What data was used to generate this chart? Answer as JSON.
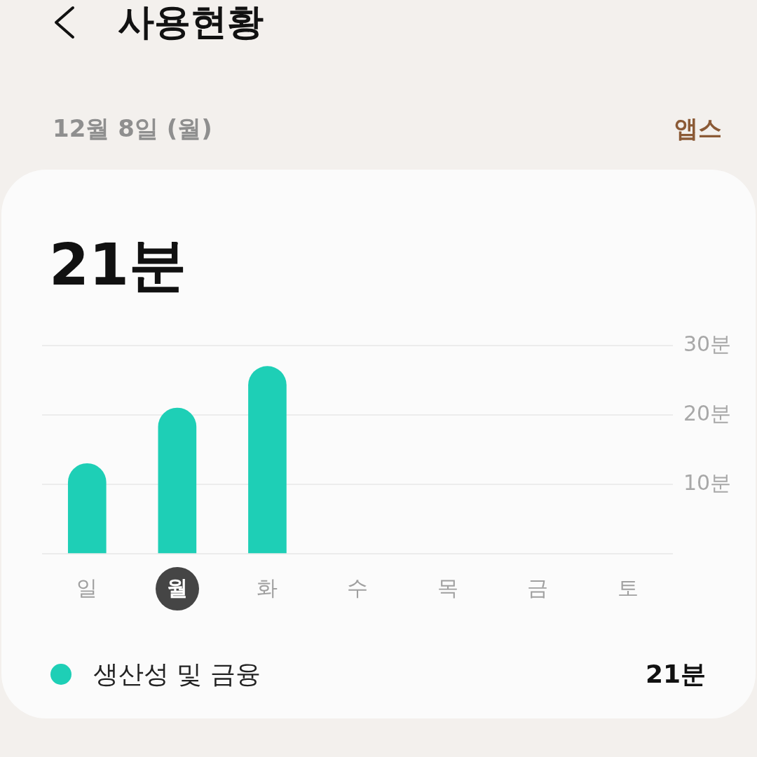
{
  "chart_data": {
    "type": "bar",
    "title": "사용현황",
    "subtitle": "12월 8일 (월)",
    "categories": [
      "일",
      "월",
      "화",
      "수",
      "목",
      "금",
      "토"
    ],
    "series": [
      {
        "name": "생산성 및 금융",
        "color": "#1ecfb6",
        "values": [
          13,
          21,
          27,
          null,
          null,
          null,
          null
        ]
      }
    ],
    "ylim": [
      0,
      30
    ],
    "yticks": [
      {
        "value": 0,
        "label": null
      },
      {
        "value": 10,
        "label": "10분"
      },
      {
        "value": 20,
        "label": "20분"
      },
      {
        "value": 30,
        "label": "30분"
      }
    ],
    "grid": "y",
    "legend": "bottom",
    "annotations": [
      "앱스",
      "21분",
      "21분"
    ]
  }
}
